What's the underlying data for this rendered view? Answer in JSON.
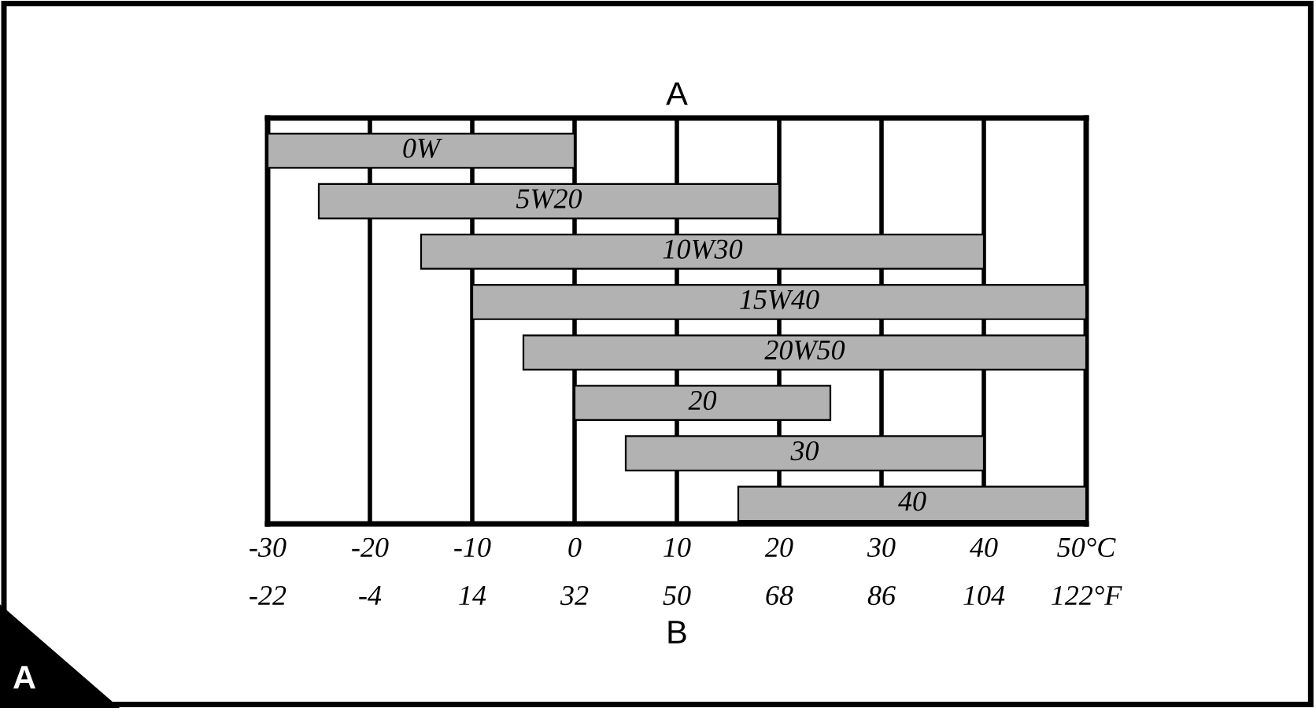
{
  "chart_data": {
    "type": "bar",
    "orientation": "horizontal",
    "title": "A",
    "xlabel": "B",
    "categories": [
      "0W",
      "5W20",
      "10W30",
      "15W40",
      "20W50",
      "20",
      "30",
      "40"
    ],
    "base": [
      -30,
      -25,
      -15,
      -10,
      -5,
      0,
      5,
      16
    ],
    "values": [
      30,
      45,
      55,
      60,
      55,
      25,
      35,
      34
    ],
    "color": "#b2b2b2",
    "xlim": [
      -30,
      50
    ],
    "xticks": [
      -30,
      -20,
      -10,
      0,
      10,
      20,
      30,
      40,
      {
        "value": 50,
        "label": "50°C"
      }
    ],
    "x2lim": [
      -22,
      122
    ],
    "x2ticks": [
      -22,
      -4,
      14,
      32,
      50,
      68,
      86,
      104,
      {
        "value": 122,
        "label": "122°F"
      }
    ],
    "grid": "x",
    "tick_labels": "x",
    "annotations": [
      "A"
    ]
  }
}
